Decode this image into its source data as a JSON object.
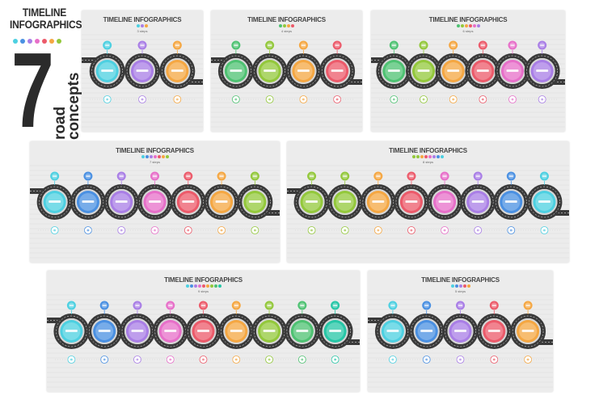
{
  "brand": {
    "title_line1": "TIMELINE",
    "title_line2": "INFOGRAPHICS",
    "number": "7",
    "subtitle_line1": "road",
    "subtitle_line2": "concepts"
  },
  "palette": {
    "cyan": "#4dd0e1",
    "blue": "#4a90e2",
    "purple": "#a97ee6",
    "pink": "#e76fc9",
    "red": "#ec5a6a",
    "orange": "#f5a742",
    "lime": "#93c83b",
    "green": "#4ec272",
    "teal": "#26c6a6",
    "road": "#3a3a3a",
    "ring": "#d6d6d6"
  },
  "brand_pin_colors": [
    "#4dd0e1",
    "#4a90e2",
    "#a97ee6",
    "#e76fc9",
    "#ec5a6a",
    "#f5a742",
    "#93c83b"
  ],
  "cards": [
    {
      "id": "card-3-steps",
      "title": "TIMELINE INFOGRAPHICS",
      "subtitle": "3 steps",
      "steps": [
        "#4dd0e1",
        "#a97ee6",
        "#f5a742"
      ]
    },
    {
      "id": "card-4-steps",
      "title": "TIMELINE INFOGRAPHICS",
      "subtitle": "4 steps",
      "steps": [
        "#4ec272",
        "#93c83b",
        "#f5a742",
        "#ec5a6a"
      ]
    },
    {
      "id": "card-6-steps",
      "title": "TIMELINE INFOGRAPHICS",
      "subtitle": "6 steps",
      "steps": [
        "#4ec272",
        "#93c83b",
        "#f5a742",
        "#ec5a6a",
        "#e76fc9",
        "#a97ee6"
      ]
    },
    {
      "id": "card-7-steps",
      "title": "TIMELINE INFOGRAPHICS",
      "subtitle": "7 steps",
      "steps": [
        "#4dd0e1",
        "#4a90e2",
        "#a97ee6",
        "#e76fc9",
        "#ec5a6a",
        "#f5a742",
        "#93c83b"
      ]
    },
    {
      "id": "card-8-steps",
      "title": "TIMELINE INFOGRAPHICS",
      "subtitle": "8 steps",
      "steps": [
        "#93c83b",
        "#93c83b",
        "#f5a742",
        "#ec5a6a",
        "#e76fc9",
        "#a97ee6",
        "#4a90e2",
        "#4dd0e1"
      ]
    },
    {
      "id": "card-9-steps",
      "title": "TIMELINE INFOGRAPHICS",
      "subtitle": "9 steps",
      "steps": [
        "#4dd0e1",
        "#4a90e2",
        "#a97ee6",
        "#e76fc9",
        "#ec5a6a",
        "#f5a742",
        "#93c83b",
        "#4ec272",
        "#26c6a6"
      ]
    },
    {
      "id": "card-5-steps",
      "title": "TIMELINE INFOGRAPHICS",
      "subtitle": "5 steps",
      "steps": [
        "#4dd0e1",
        "#4a90e2",
        "#a97ee6",
        "#ec5a6a",
        "#f5a742"
      ]
    }
  ]
}
